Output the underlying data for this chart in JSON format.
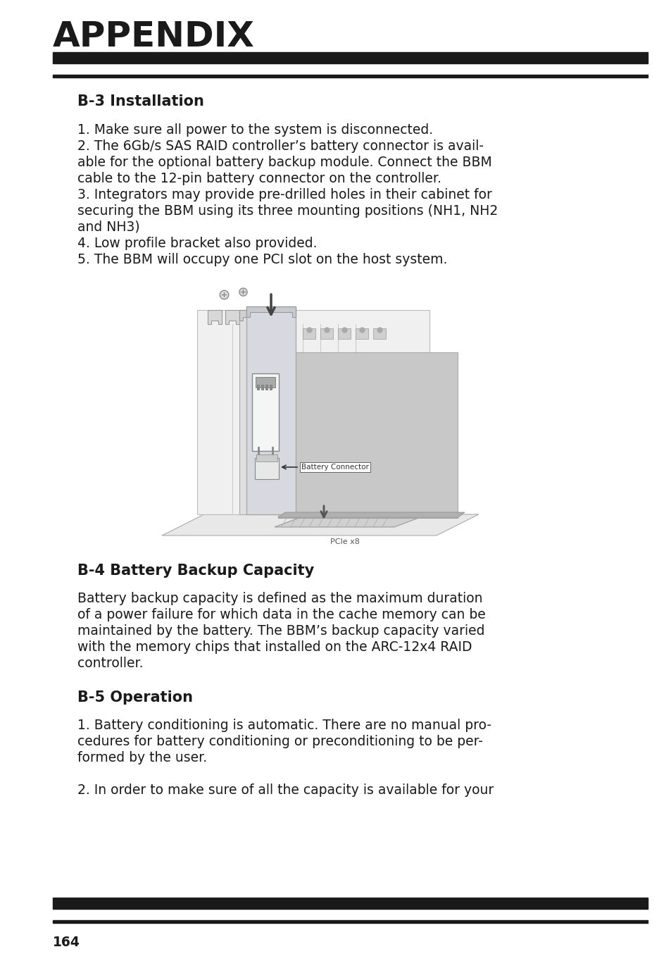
{
  "bg_color": "#ffffff",
  "title": "APPENDIX",
  "title_fontsize": 36,
  "header_bar_color": "#1a1a1a",
  "section_b3": "B-3 Installation",
  "section_b4": "B-4 Battery Backup Capacity",
  "section_b5": "B-5 Operation",
  "section_fontsize": 15,
  "body_fontsize": 13.5,
  "page_number": "164",
  "b3_text_lines": [
    "1. Make sure all power to the system is disconnected.",
    "2. The 6Gb/s SAS RAID controller’s battery connector is avail-",
    "able for the optional battery backup module. Connect the BBM",
    "cable to the 12-pin battery connector on the controller.",
    "3. Integrators may provide pre-drilled holes in their cabinet for",
    "securing the BBM using its three mounting positions (NH1, NH2",
    "and NH3)",
    "4. Low profile bracket also provided.",
    "5. The BBM will occupy one PCI slot on the host system."
  ],
  "b4_text_lines": [
    "Battery backup capacity is defined as the maximum duration",
    "of a power failure for which data in the cache memory can be",
    "maintained by the battery. The BBM’s backup capacity varied",
    "with the memory chips that installed on the ARC-12x4 RAID",
    "controller."
  ],
  "b5_text_lines": [
    "1. Battery conditioning is automatic. There are no manual pro-",
    "cedures for battery conditioning or preconditioning to be per-",
    "formed by the user.",
    "",
    "2. In order to make sure of all the capacity is available for your"
  ]
}
